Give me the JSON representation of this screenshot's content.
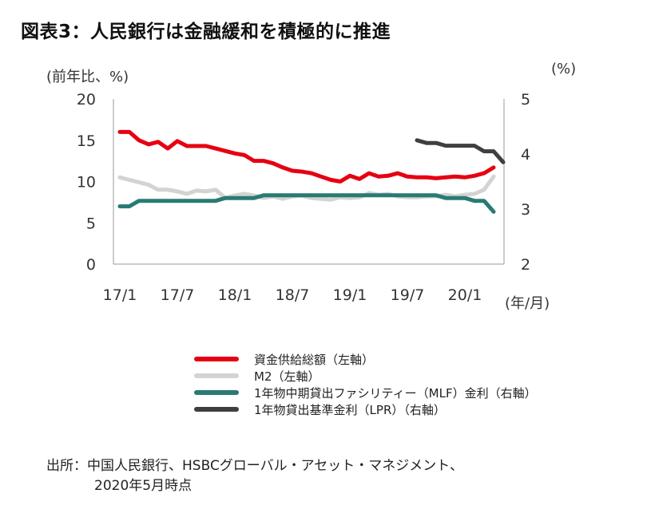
{
  "title": "図表3：人民銀行は金融緩和を積極的に推進",
  "chart_data": {
    "type": "line",
    "left_unit": "(前年比、%)",
    "right_unit": "(%)",
    "x_unit": "(年/月)",
    "left_axis": {
      "ticks": [
        "0",
        "5",
        "10",
        "15",
        "20"
      ],
      "range": [
        0,
        20
      ]
    },
    "right_axis": {
      "ticks": [
        "2",
        "3",
        "4",
        "5"
      ],
      "range": [
        2,
        5
      ]
    },
    "x_ticks": [
      "17/1",
      "17/7",
      "18/1",
      "18/7",
      "19/1",
      "19/7",
      "20/1"
    ],
    "x_range": [
      0,
      40
    ],
    "series": [
      {
        "name": "資金供給総額（左軸）",
        "axis": "left",
        "color": "#e60012",
        "x_start": 0,
        "values": [
          16.0,
          16.0,
          15.0,
          14.5,
          14.8,
          14.0,
          14.9,
          14.3,
          14.3,
          14.3,
          14.0,
          13.7,
          13.4,
          13.2,
          12.5,
          12.5,
          12.2,
          11.7,
          11.3,
          11.2,
          11.0,
          10.6,
          10.2,
          10.0,
          10.7,
          10.3,
          11.0,
          10.6,
          10.7,
          11.0,
          10.6,
          10.5,
          10.5,
          10.4,
          10.5,
          10.6,
          10.5,
          10.7,
          11.0,
          11.7
        ]
      },
      {
        "name": "M2（左軸）",
        "axis": "left",
        "color": "#d3d3d3",
        "x_start": 0,
        "values": [
          10.5,
          10.2,
          9.9,
          9.6,
          9.0,
          9.0,
          8.8,
          8.5,
          8.9,
          8.8,
          9.0,
          8.0,
          8.3,
          8.5,
          8.3,
          8.0,
          8.2,
          7.9,
          8.2,
          8.3,
          8.0,
          7.9,
          7.8,
          8.1,
          8.0,
          8.1,
          8.6,
          8.4,
          8.5,
          8.2,
          8.1,
          8.1,
          8.2,
          8.2,
          8.4,
          8.2,
          8.4,
          8.5,
          9.0,
          10.6
        ]
      },
      {
        "name": "1年物中期貸出ファシリティー（MLF）金利（右軸）",
        "axis": "right",
        "color": "#2a7a74",
        "x_start": 0,
        "values": [
          3.05,
          3.05,
          3.15,
          3.15,
          3.15,
          3.15,
          3.15,
          3.15,
          3.15,
          3.15,
          3.15,
          3.2,
          3.2,
          3.2,
          3.2,
          3.25,
          3.25,
          3.25,
          3.25,
          3.25,
          3.25,
          3.25,
          3.25,
          3.25,
          3.25,
          3.25,
          3.25,
          3.25,
          3.25,
          3.25,
          3.25,
          3.25,
          3.25,
          3.25,
          3.2,
          3.2,
          3.2,
          3.15,
          3.15,
          2.95
        ]
      },
      {
        "name": "1年物貸出基準金利（LPR）（右軸）",
        "axis": "right",
        "color": "#3f3f3f",
        "x_start": 31,
        "values": [
          4.25,
          4.2,
          4.2,
          4.15,
          4.15,
          4.15,
          4.15,
          4.05,
          4.05,
          3.85
        ]
      }
    ]
  },
  "source": {
    "line1": "出所：中国人民銀行、HSBCグローバル・アセット・マネジメント、",
    "line2": "2020年5月時点"
  }
}
